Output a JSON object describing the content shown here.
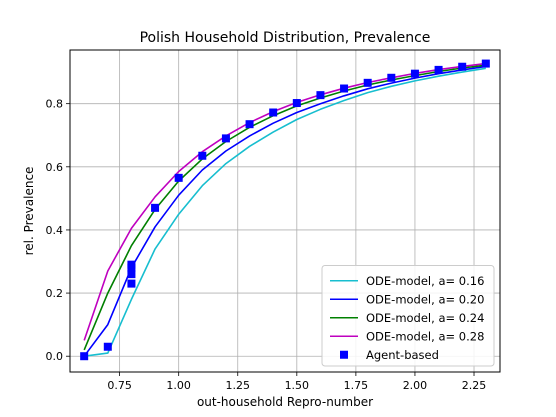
{
  "chart_data": {
    "type": "line",
    "title": "Polish Household Distribution, Prevalence",
    "xlabel": "out-household Repro-number",
    "ylabel": "rel. Prevalence",
    "xlim": [
      0.54,
      2.36
    ],
    "ylim": [
      -0.05,
      0.97
    ],
    "xticks": [
      0.75,
      1.0,
      1.25,
      1.5,
      1.75,
      2.0,
      2.25
    ],
    "xtick_labels": [
      "0.75",
      "1.00",
      "1.25",
      "1.50",
      "1.75",
      "2.00",
      "2.25"
    ],
    "yticks": [
      0.0,
      0.2,
      0.4,
      0.6,
      0.8
    ],
    "ytick_labels": [
      "0.0",
      "0.2",
      "0.4",
      "0.6",
      "0.8"
    ],
    "grid": true,
    "legend_position": "lower-right",
    "series": [
      {
        "name": "ODE-model, a= 0.16",
        "color": "#17becf",
        "style": "line",
        "x": [
          0.6,
          0.7,
          0.8,
          0.9,
          1.0,
          1.1,
          1.2,
          1.3,
          1.4,
          1.5,
          1.6,
          1.7,
          1.8,
          1.9,
          2.0,
          2.1,
          2.2,
          2.3
        ],
        "y": [
          0.0,
          0.01,
          0.18,
          0.34,
          0.45,
          0.54,
          0.61,
          0.665,
          0.71,
          0.75,
          0.782,
          0.81,
          0.835,
          0.855,
          0.872,
          0.887,
          0.9,
          0.912
        ]
      },
      {
        "name": "ODE-model, a= 0.20",
        "color": "#0000ff",
        "style": "line",
        "x": [
          0.6,
          0.7,
          0.8,
          0.9,
          1.0,
          1.1,
          1.2,
          1.3,
          1.4,
          1.5,
          1.6,
          1.7,
          1.8,
          1.9,
          2.0,
          2.1,
          2.2,
          2.3
        ],
        "y": [
          0.0,
          0.1,
          0.28,
          0.41,
          0.51,
          0.59,
          0.65,
          0.698,
          0.738,
          0.772,
          0.8,
          0.825,
          0.847,
          0.865,
          0.881,
          0.895,
          0.907,
          0.918
        ]
      },
      {
        "name": "ODE-model, a= 0.24",
        "color": "#008000",
        "style": "line",
        "x": [
          0.6,
          0.7,
          0.8,
          0.9,
          1.0,
          1.1,
          1.2,
          1.3,
          1.4,
          1.5,
          1.6,
          1.7,
          1.8,
          1.9,
          2.0,
          2.1,
          2.2,
          2.3
        ],
        "y": [
          0.02,
          0.2,
          0.35,
          0.465,
          0.555,
          0.625,
          0.68,
          0.725,
          0.762,
          0.793,
          0.818,
          0.84,
          0.859,
          0.875,
          0.889,
          0.902,
          0.913,
          0.922
        ]
      },
      {
        "name": "ODE-model, a= 0.28",
        "color": "#bf00bf",
        "style": "line",
        "x": [
          0.6,
          0.7,
          0.8,
          0.9,
          1.0,
          1.1,
          1.2,
          1.3,
          1.4,
          1.5,
          1.6,
          1.7,
          1.8,
          1.9,
          2.0,
          2.1,
          2.2,
          2.3
        ],
        "y": [
          0.05,
          0.27,
          0.405,
          0.505,
          0.585,
          0.648,
          0.698,
          0.74,
          0.775,
          0.804,
          0.828,
          0.849,
          0.867,
          0.882,
          0.896,
          0.908,
          0.918,
          0.927
        ]
      },
      {
        "name": "Agent-based",
        "color": "#0000ff",
        "style": "marker",
        "x": [
          0.6,
          0.7,
          0.8,
          0.8,
          0.8,
          0.8,
          0.9,
          1.0,
          1.1,
          1.2,
          1.3,
          1.4,
          1.5,
          1.6,
          1.7,
          1.8,
          1.9,
          2.0,
          2.1,
          2.2,
          2.3
        ],
        "y": [
          0.0,
          0.03,
          0.23,
          0.26,
          0.28,
          0.29,
          0.47,
          0.565,
          0.635,
          0.69,
          0.735,
          0.772,
          0.802,
          0.827,
          0.848,
          0.866,
          0.882,
          0.895,
          0.907,
          0.917,
          0.927
        ]
      }
    ]
  }
}
